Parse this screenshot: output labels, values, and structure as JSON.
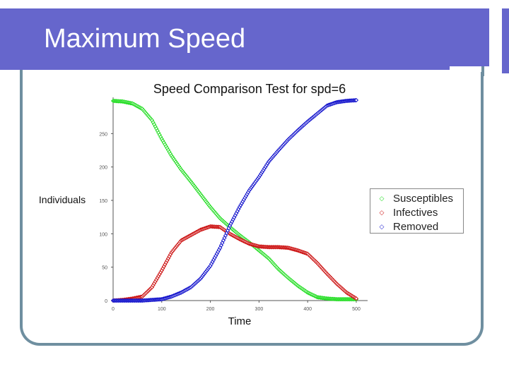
{
  "slide": {
    "title": "Maximum Speed"
  },
  "chart_data": {
    "type": "scatter",
    "title": "Speed Comparison Test for spd=6",
    "xlabel": "Time",
    "ylabel": "Individuals",
    "xlim": [
      0,
      500
    ],
    "ylim": [
      0,
      300
    ],
    "x_ticks": [
      "0",
      "100",
      "200",
      "300",
      "400",
      "500"
    ],
    "y_ticks": [
      "0",
      "50",
      "100",
      "150",
      "200",
      "250"
    ],
    "legend_position": "right",
    "series": [
      {
        "name": "Susceptibles",
        "color": "#22dd22",
        "marker": "diamond",
        "x": [
          0,
          20,
          40,
          60,
          80,
          100,
          120,
          140,
          160,
          180,
          200,
          220,
          240,
          260,
          280,
          300,
          320,
          340,
          360,
          380,
          400,
          420,
          440,
          460,
          480,
          500
        ],
        "y": [
          299,
          298,
          295,
          287,
          270,
          242,
          217,
          196,
          178,
          159,
          140,
          123,
          110,
          98,
          87,
          75,
          63,
          47,
          34,
          22,
          12,
          5,
          3,
          2,
          2,
          2
        ]
      },
      {
        "name": "Infectives",
        "color": "#cc1111",
        "marker": "diamond",
        "x": [
          0,
          20,
          40,
          60,
          80,
          100,
          120,
          140,
          160,
          180,
          200,
          220,
          240,
          260,
          280,
          300,
          320,
          340,
          360,
          380,
          400,
          420,
          440,
          460,
          480,
          500
        ],
        "y": [
          0,
          1,
          3,
          6,
          20,
          45,
          72,
          90,
          98,
          106,
          111,
          110,
          100,
          92,
          85,
          81,
          80,
          80,
          79,
          75,
          70,
          56,
          40,
          25,
          12,
          3
        ]
      },
      {
        "name": "Removed",
        "color": "#1111cc",
        "marker": "diamond",
        "x": [
          0,
          20,
          40,
          60,
          80,
          100,
          120,
          140,
          160,
          180,
          200,
          220,
          240,
          260,
          280,
          300,
          320,
          340,
          360,
          380,
          400,
          420,
          440,
          460,
          480,
          500
        ],
        "y": [
          0,
          0,
          0,
          0,
          1,
          2,
          6,
          12,
          20,
          33,
          52,
          79,
          112,
          140,
          165,
          185,
          208,
          225,
          241,
          255,
          268,
          280,
          292,
          297,
          299,
          300
        ]
      }
    ]
  }
}
